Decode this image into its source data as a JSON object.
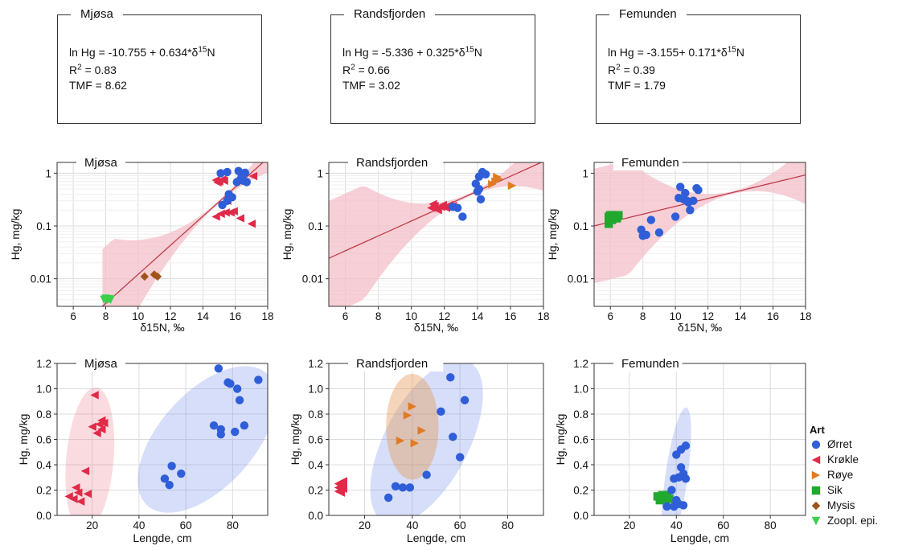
{
  "colors": {
    "orret": "#2f5ed8",
    "krokle": "#e02a48",
    "roye": "#e07b23",
    "sik": "#21a82e",
    "mysis": "#a0541a",
    "zoopl": "#3bd04a",
    "fit_line": "#bf3d4c",
    "fit_band": "#f3c0c8",
    "grid": "#dcdcdc"
  },
  "equations": [
    {
      "lake": "Mjøsa",
      "eq_prefix": "ln Hg = -10.755 + 0.634*δ",
      "eq_sup": "15",
      "eq_suffix": "N",
      "r2_prefix": "R",
      "r2_sup": "2",
      "r2_value": " = 0.83",
      "tmf": "TMF = 8.62"
    },
    {
      "lake": "Randsfjorden",
      "eq_prefix": "ln Hg = -5.336 + 0.325*δ",
      "eq_sup": "15",
      "eq_suffix": "N",
      "r2_prefix": "R",
      "r2_sup": "2",
      "r2_value": " = 0.66",
      "tmf": "TMF = 3.02"
    },
    {
      "lake": "Femunden",
      "eq_prefix": "ln Hg = -3.155+ 0.171*δ",
      "eq_sup": "15",
      "eq_suffix": "N",
      "r2_prefix": "R",
      "r2_sup": "2",
      "r2_value": " = 0.39",
      "tmf": "TMF = 1.79"
    }
  ],
  "legend": {
    "title": "Art",
    "items": [
      {
        "label": "Ørret",
        "key": "orret",
        "shape": "circle"
      },
      {
        "label": "Krøkle",
        "key": "krokle",
        "shape": "tri-left"
      },
      {
        "label": "Røye",
        "key": "roye",
        "shape": "tri-right"
      },
      {
        "label": "Sik",
        "key": "sik",
        "shape": "square"
      },
      {
        "label": "Mysis",
        "key": "mysis",
        "shape": "diamond"
      },
      {
        "label": "Zoopl. epi.",
        "key": "zoopl",
        "shape": "tri-down"
      }
    ]
  },
  "chart_data": [
    {
      "type": "scatter",
      "lake": "Mjøsa",
      "title": "Mjøsa",
      "xlabel": "δ15N, ‰",
      "ylabel": "Hg, mg/kg",
      "yscale": "log",
      "xlim": [
        5,
        18
      ],
      "ylim": [
        0.003,
        1.6
      ],
      "xticks": [
        6,
        8,
        10,
        12,
        14,
        16,
        18
      ],
      "yticks": [
        0.01,
        0.1,
        1
      ],
      "ytick_labels": [
        "0.01",
        "0.1",
        "1"
      ],
      "fit": {
        "intercept": -10.755,
        "slope": 0.634,
        "x_range": [
          7.8,
          18
        ]
      },
      "series": [
        {
          "key": "zoopl",
          "points": [
            [
              7.9,
              0.004
            ],
            [
              8.1,
              0.004
            ],
            [
              8.3,
              0.004
            ],
            [
              8.0,
              0.0042
            ],
            [
              8.2,
              0.0041
            ]
          ]
        },
        {
          "key": "mysis",
          "points": [
            [
              10.4,
              0.011
            ],
            [
              11.0,
              0.012
            ],
            [
              11.2,
              0.011
            ]
          ]
        },
        {
          "key": "krokle",
          "points": [
            [
              14.8,
              0.74
            ],
            [
              15.0,
              0.7
            ],
            [
              15.2,
              0.76
            ],
            [
              14.9,
              0.67
            ],
            [
              15.3,
              0.72
            ],
            [
              14.8,
              0.15
            ],
            [
              15.1,
              0.17
            ],
            [
              15.4,
              0.18
            ],
            [
              15.7,
              0.18
            ],
            [
              15.9,
              0.19
            ],
            [
              16.3,
              0.14
            ],
            [
              17.0,
              0.11
            ],
            [
              17.1,
              0.88
            ],
            [
              15.5,
              0.3
            ]
          ]
        },
        {
          "key": "orret",
          "points": [
            [
              15.1,
              1.0
            ],
            [
              15.5,
              1.05
            ],
            [
              15.6,
              0.4
            ],
            [
              15.2,
              0.25
            ],
            [
              15.5,
              0.3
            ],
            [
              15.8,
              0.35
            ],
            [
              16.2,
              1.1
            ],
            [
              16.4,
              0.9
            ],
            [
              16.1,
              0.68
            ],
            [
              16.5,
              0.72
            ],
            [
              16.6,
              1.02
            ],
            [
              16.4,
              0.85
            ],
            [
              16.7,
              0.68
            ],
            [
              16.3,
              0.75
            ]
          ]
        }
      ]
    },
    {
      "type": "scatter",
      "lake": "Randsfjorden",
      "title": "Randsfjorden",
      "xlabel": "δ15N, ‰",
      "ylabel": "Hg, mg/kg",
      "yscale": "log",
      "xlim": [
        5,
        18
      ],
      "ylim": [
        0.003,
        1.6
      ],
      "xticks": [
        6,
        8,
        10,
        12,
        14,
        16,
        18
      ],
      "yticks": [
        0.01,
        0.1,
        1
      ],
      "ytick_labels": [
        "0.01",
        "0.1",
        "1"
      ],
      "fit": {
        "intercept": -5.336,
        "slope": 0.325,
        "x_range": [
          5,
          18
        ]
      },
      "series": [
        {
          "key": "krokle",
          "points": [
            [
              11.2,
              0.22
            ],
            [
              11.4,
              0.24
            ],
            [
              11.6,
              0.2
            ],
            [
              11.3,
              0.26
            ],
            [
              11.8,
              0.23
            ],
            [
              12.1,
              0.22
            ],
            [
              12.3,
              0.25
            ],
            [
              12.5,
              0.24
            ],
            [
              11.5,
              0.21
            ],
            [
              11.9,
              0.25
            ]
          ]
        },
        {
          "key": "orret",
          "points": [
            [
              12.5,
              0.23
            ],
            [
              12.8,
              0.22
            ],
            [
              13.1,
              0.15
            ],
            [
              13.9,
              0.63
            ],
            [
              14.0,
              0.45
            ],
            [
              14.1,
              0.86
            ],
            [
              14.3,
              1.05
            ],
            [
              14.2,
              0.32
            ],
            [
              14.5,
              0.95
            ],
            [
              14.1,
              0.5
            ]
          ]
        },
        {
          "key": "roye",
          "points": [
            [
              14.9,
              0.62
            ],
            [
              15.1,
              0.7
            ],
            [
              15.3,
              0.78
            ],
            [
              15.2,
              0.85
            ],
            [
              16.1,
              0.58
            ]
          ]
        }
      ]
    },
    {
      "type": "scatter",
      "lake": "Femunden",
      "title": "Femunden",
      "xlabel": "δ15N, ‰",
      "ylabel": "Hg, mg/kg",
      "yscale": "log",
      "xlim": [
        5,
        18
      ],
      "ylim": [
        0.003,
        1.6
      ],
      "xticks": [
        6,
        8,
        10,
        12,
        14,
        16,
        18
      ],
      "yticks": [
        0.01,
        0.1,
        1
      ],
      "ytick_labels": [
        "0.01",
        "0.1",
        "1"
      ],
      "fit": {
        "intercept": -3.155,
        "slope": 0.171,
        "x_range": [
          5,
          18
        ]
      },
      "series": [
        {
          "key": "sik",
          "points": [
            [
              5.9,
              0.15
            ],
            [
              6.0,
              0.16
            ],
            [
              6.1,
              0.13
            ],
            [
              6.2,
              0.15
            ],
            [
              6.3,
              0.16
            ],
            [
              6.4,
              0.14
            ],
            [
              6.5,
              0.16
            ],
            [
              5.9,
              0.11
            ],
            [
              6.1,
              0.16
            ],
            [
              6.3,
              0.14
            ]
          ]
        },
        {
          "key": "orret",
          "points": [
            [
              7.9,
              0.085
            ],
            [
              8.0,
              0.065
            ],
            [
              8.2,
              0.068
            ],
            [
              8.5,
              0.13
            ],
            [
              9.0,
              0.075
            ],
            [
              10.0,
              0.15
            ],
            [
              10.2,
              0.34
            ],
            [
              10.3,
              0.55
            ],
            [
              10.5,
              0.32
            ],
            [
              10.6,
              0.42
            ],
            [
              10.7,
              0.3
            ],
            [
              10.9,
              0.2
            ],
            [
              11.1,
              0.3
            ],
            [
              11.3,
              0.52
            ],
            [
              11.4,
              0.48
            ],
            [
              10.8,
              0.28
            ]
          ]
        }
      ]
    },
    {
      "type": "scatter",
      "lake": "Mjøsa",
      "title": "Mjøsa",
      "xlabel": "Lengde, cm",
      "ylabel": "Hg, mg/kg",
      "yscale": "linear",
      "xlim": [
        5,
        95
      ],
      "ylim": [
        0,
        1.2
      ],
      "xticks": [
        20,
        40,
        60,
        80
      ],
      "yticks": [
        0,
        0.2,
        0.4,
        0.6,
        0.8,
        1.0,
        1.2
      ],
      "ytick_labels": [
        "0.0",
        "0.2",
        "0.4",
        "0.6",
        "0.8",
        "1.0",
        "1.2"
      ],
      "ellipses": [
        {
          "key": "krokle",
          "cx": 19,
          "cy": 0.44,
          "rx": 31,
          "ry": 0.085,
          "angle_deg": -85
        },
        {
          "key": "orret",
          "cx": 69,
          "cy": 0.6,
          "rx": 38,
          "ry": 0.17,
          "angle_deg": -48
        }
      ],
      "series": [
        {
          "key": "krokle",
          "points": [
            [
              10,
              0.15
            ],
            [
              12,
              0.13
            ],
            [
              13,
              0.22
            ],
            [
              14,
              0.18
            ],
            [
              15,
              0.11
            ],
            [
              17,
              0.35
            ],
            [
              18,
              0.17
            ],
            [
              20,
              0.7
            ],
            [
              21,
              0.95
            ],
            [
              22,
              0.65
            ],
            [
              23,
              0.72
            ],
            [
              24,
              0.75
            ],
            [
              24,
              0.68
            ],
            [
              25,
              0.73
            ]
          ]
        },
        {
          "key": "orret",
          "points": [
            [
              51,
              0.29
            ],
            [
              53,
              0.24
            ],
            [
              54,
              0.39
            ],
            [
              58,
              0.33
            ],
            [
              72,
              0.71
            ],
            [
              74,
              1.16
            ],
            [
              75,
              0.64
            ],
            [
              75,
              0.68
            ],
            [
              78,
              1.05
            ],
            [
              79,
              1.04
            ],
            [
              81,
              0.66
            ],
            [
              82,
              1.0
            ],
            [
              83,
              0.91
            ],
            [
              85,
              0.71
            ],
            [
              91,
              1.07
            ]
          ]
        }
      ]
    },
    {
      "type": "scatter",
      "lake": "Randsfjorden",
      "title": "Randsfjorden",
      "xlabel": "Lengde, cm",
      "ylabel": "Hg, mg/kg",
      "yscale": "linear",
      "xlim": [
        5,
        95
      ],
      "ylim": [
        0,
        1.2
      ],
      "xticks": [
        20,
        40,
        60,
        80
      ],
      "yticks": [
        0,
        0.2,
        0.4,
        0.6,
        0.8,
        1.0,
        1.2
      ],
      "ytick_labels": [
        "0.0",
        "0.2",
        "0.4",
        "0.6",
        "0.8",
        "1.0",
        "1.2"
      ],
      "ellipses": [
        {
          "key": "orret",
          "cx": 46,
          "cy": 0.58,
          "rx": 38,
          "ry": 0.15,
          "angle_deg": -62
        },
        {
          "key": "roye",
          "cx": 40,
          "cy": 0.7,
          "rx": 11,
          "ry": 0.19,
          "angle_deg": 0
        }
      ],
      "series": [
        {
          "key": "krokle",
          "points": [
            [
              9,
              0.22
            ],
            [
              10,
              0.24
            ],
            [
              10,
              0.2
            ],
            [
              11,
              0.23
            ],
            [
              9,
              0.19
            ],
            [
              10,
              0.26
            ],
            [
              11,
              0.21
            ],
            [
              10,
              0.18
            ],
            [
              9,
              0.25
            ],
            [
              11,
              0.27
            ]
          ]
        },
        {
          "key": "orret",
          "points": [
            [
              30,
              0.14
            ],
            [
              33,
              0.23
            ],
            [
              36,
              0.22
            ],
            [
              39,
              0.22
            ],
            [
              46,
              0.32
            ],
            [
              52,
              0.82
            ],
            [
              56,
              1.09
            ],
            [
              57,
              0.62
            ],
            [
              60,
              0.46
            ],
            [
              62,
              0.91
            ]
          ]
        },
        {
          "key": "roye",
          "points": [
            [
              35,
              0.59
            ],
            [
              38,
              0.79
            ],
            [
              40,
              0.86
            ],
            [
              41,
              0.57
            ],
            [
              44,
              0.67
            ]
          ]
        }
      ]
    },
    {
      "type": "scatter",
      "lake": "Femunden",
      "title": "Femunden",
      "xlabel": "Lengde, cm",
      "ylabel": "Hg, mg/kg",
      "yscale": "linear",
      "xlim": [
        5,
        95
      ],
      "ylim": [
        0,
        1.2
      ],
      "xticks": [
        20,
        40,
        60,
        80
      ],
      "yticks": [
        0,
        0.2,
        0.4,
        0.6,
        0.8,
        1.0,
        1.2
      ],
      "ytick_labels": [
        "0.0",
        "0.2",
        "0.4",
        "0.6",
        "0.8",
        "1.0",
        "1.2"
      ],
      "ellipses": [
        {
          "key": "orret",
          "cx": 40,
          "cy": 0.3,
          "rx": 30,
          "ry": 0.04,
          "angle_deg": -82
        },
        {
          "key": "sik",
          "cx": 36,
          "cy": 0.13,
          "rx": 3.5,
          "ry": 0.03,
          "angle_deg": 0
        }
      ],
      "series": [
        {
          "key": "sik",
          "points": [
            [
              32,
              0.15
            ],
            [
              33,
              0.14
            ],
            [
              34,
              0.16
            ],
            [
              35,
              0.13
            ],
            [
              36,
              0.15
            ],
            [
              33,
              0.12
            ],
            [
              34,
              0.14
            ],
            [
              36,
              0.16
            ],
            [
              37,
              0.13
            ]
          ]
        },
        {
          "key": "orret",
          "points": [
            [
              36,
              0.07
            ],
            [
              38,
              0.2
            ],
            [
              39,
              0.07
            ],
            [
              39,
              0.29
            ],
            [
              40,
              0.12
            ],
            [
              40,
              0.48
            ],
            [
              41,
              0.3
            ],
            [
              41,
              0.09
            ],
            [
              42,
              0.38
            ],
            [
              42,
              0.52
            ],
            [
              43,
              0.08
            ],
            [
              43,
              0.33
            ],
            [
              44,
              0.29
            ],
            [
              44,
              0.55
            ]
          ]
        }
      ]
    }
  ]
}
